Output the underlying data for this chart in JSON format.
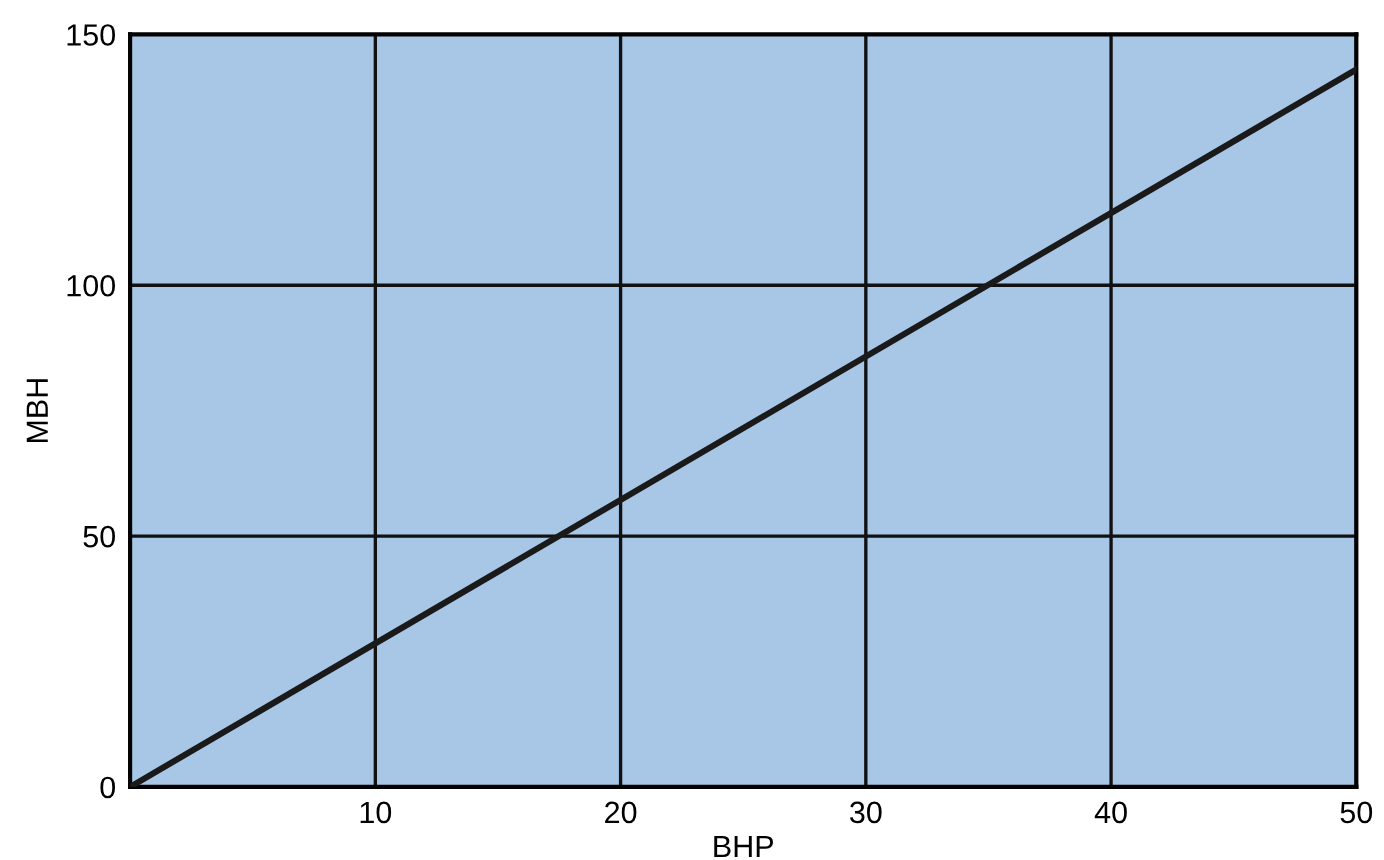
{
  "chart_data": {
    "type": "line",
    "xlabel": "BHP",
    "ylabel": "MBH",
    "x": [
      0,
      50
    ],
    "series": [
      {
        "color": "#1a1a1a",
        "values": [
          0,
          143
        ]
      }
    ],
    "xlim": [
      0,
      50
    ],
    "ylim": [
      0,
      150
    ],
    "xticks": [
      10,
      20,
      30,
      40,
      50
    ],
    "yticks": [
      0,
      50,
      100,
      150
    ],
    "grid": true
  }
}
